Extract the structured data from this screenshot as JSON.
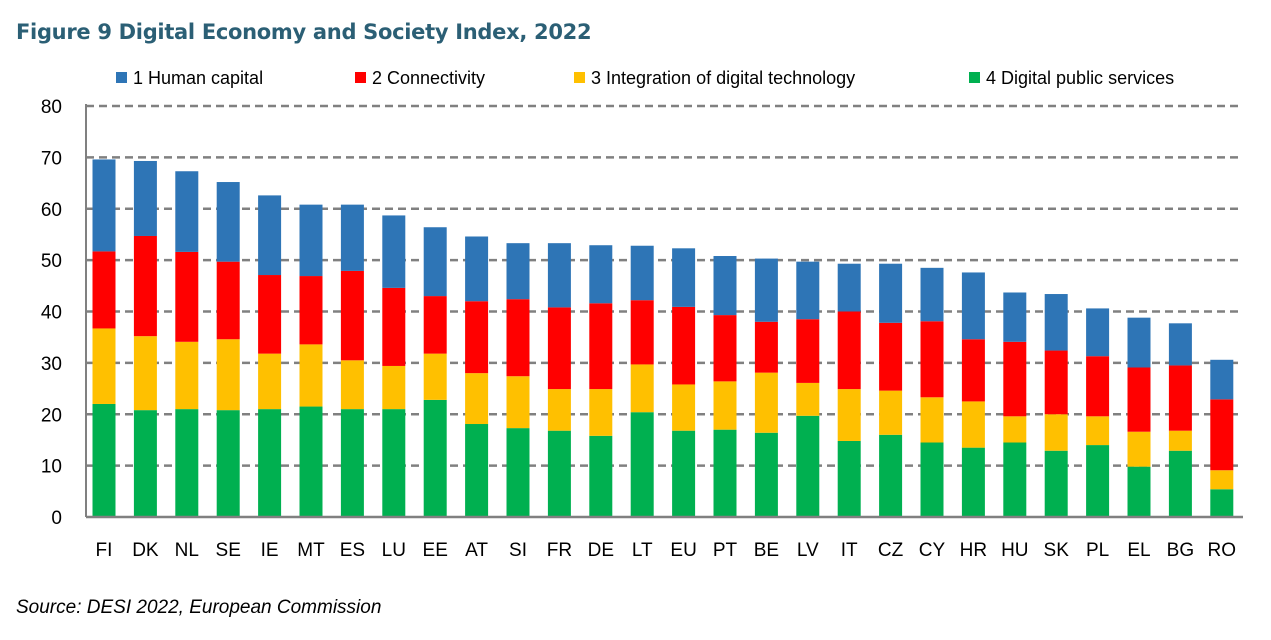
{
  "chart_data": {
    "type": "bar",
    "stacked": true,
    "title": "Figure 9 Digital Economy and Society Index, 2022",
    "source": "Source: DESI 2022, European Commission",
    "categories": [
      "FI",
      "DK",
      "NL",
      "SE",
      "IE",
      "MT",
      "ES",
      "LU",
      "EE",
      "AT",
      "SI",
      "FR",
      "DE",
      "LT",
      "EU",
      "PT",
      "BE",
      "LV",
      "IT",
      "CZ",
      "CY",
      "HR",
      "HU",
      "SK",
      "PL",
      "EL",
      "BG",
      "RO"
    ],
    "series": [
      {
        "name": "4 Digital public services",
        "color": "#00b050",
        "values": [
          22.0,
          20.8,
          21.0,
          20.8,
          21.0,
          21.5,
          21.0,
          21.0,
          22.8,
          18.1,
          17.3,
          16.8,
          15.8,
          20.4,
          16.8,
          17.0,
          16.4,
          19.7,
          14.8,
          16.0,
          14.5,
          13.5,
          14.5,
          12.9,
          14.0,
          9.8,
          12.9,
          5.4
        ]
      },
      {
        "name": "3 Integration of digital technology",
        "color": "#ffc000",
        "values": [
          14.7,
          14.4,
          13.1,
          13.8,
          10.8,
          12.1,
          9.5,
          8.4,
          9.0,
          9.9,
          10.1,
          8.1,
          9.1,
          9.3,
          9.0,
          9.4,
          11.7,
          6.4,
          10.1,
          8.6,
          8.8,
          9.0,
          5.1,
          7.1,
          5.6,
          6.8,
          3.9,
          3.7
        ]
      },
      {
        "name": "2 Connectivity",
        "color": "#ff0000",
        "values": [
          15.0,
          19.5,
          17.5,
          15.1,
          15.3,
          13.3,
          17.4,
          15.2,
          11.2,
          14.0,
          15.0,
          15.9,
          16.7,
          12.5,
          15.1,
          12.9,
          9.9,
          12.4,
          15.1,
          13.2,
          14.8,
          12.1,
          14.5,
          12.4,
          11.7,
          12.5,
          12.7,
          13.8
        ]
      },
      {
        "name": "1 Human capital",
        "color": "#2e75b6",
        "values": [
          17.9,
          14.6,
          15.7,
          15.5,
          15.5,
          13.9,
          12.9,
          14.1,
          13.4,
          12.6,
          10.9,
          12.5,
          11.3,
          10.6,
          11.4,
          11.5,
          12.3,
          11.2,
          9.3,
          11.5,
          10.4,
          13.0,
          9.6,
          11.0,
          9.3,
          9.7,
          8.2,
          7.7
        ]
      }
    ],
    "legend_order": [
      3,
      2,
      1,
      0
    ],
    "legend_position": "top",
    "ylim": [
      0,
      80
    ],
    "yticks": [
      "0",
      "10",
      "20",
      "30",
      "40",
      "50",
      "60",
      "70",
      "80"
    ],
    "grid": "dashed horizontal"
  }
}
